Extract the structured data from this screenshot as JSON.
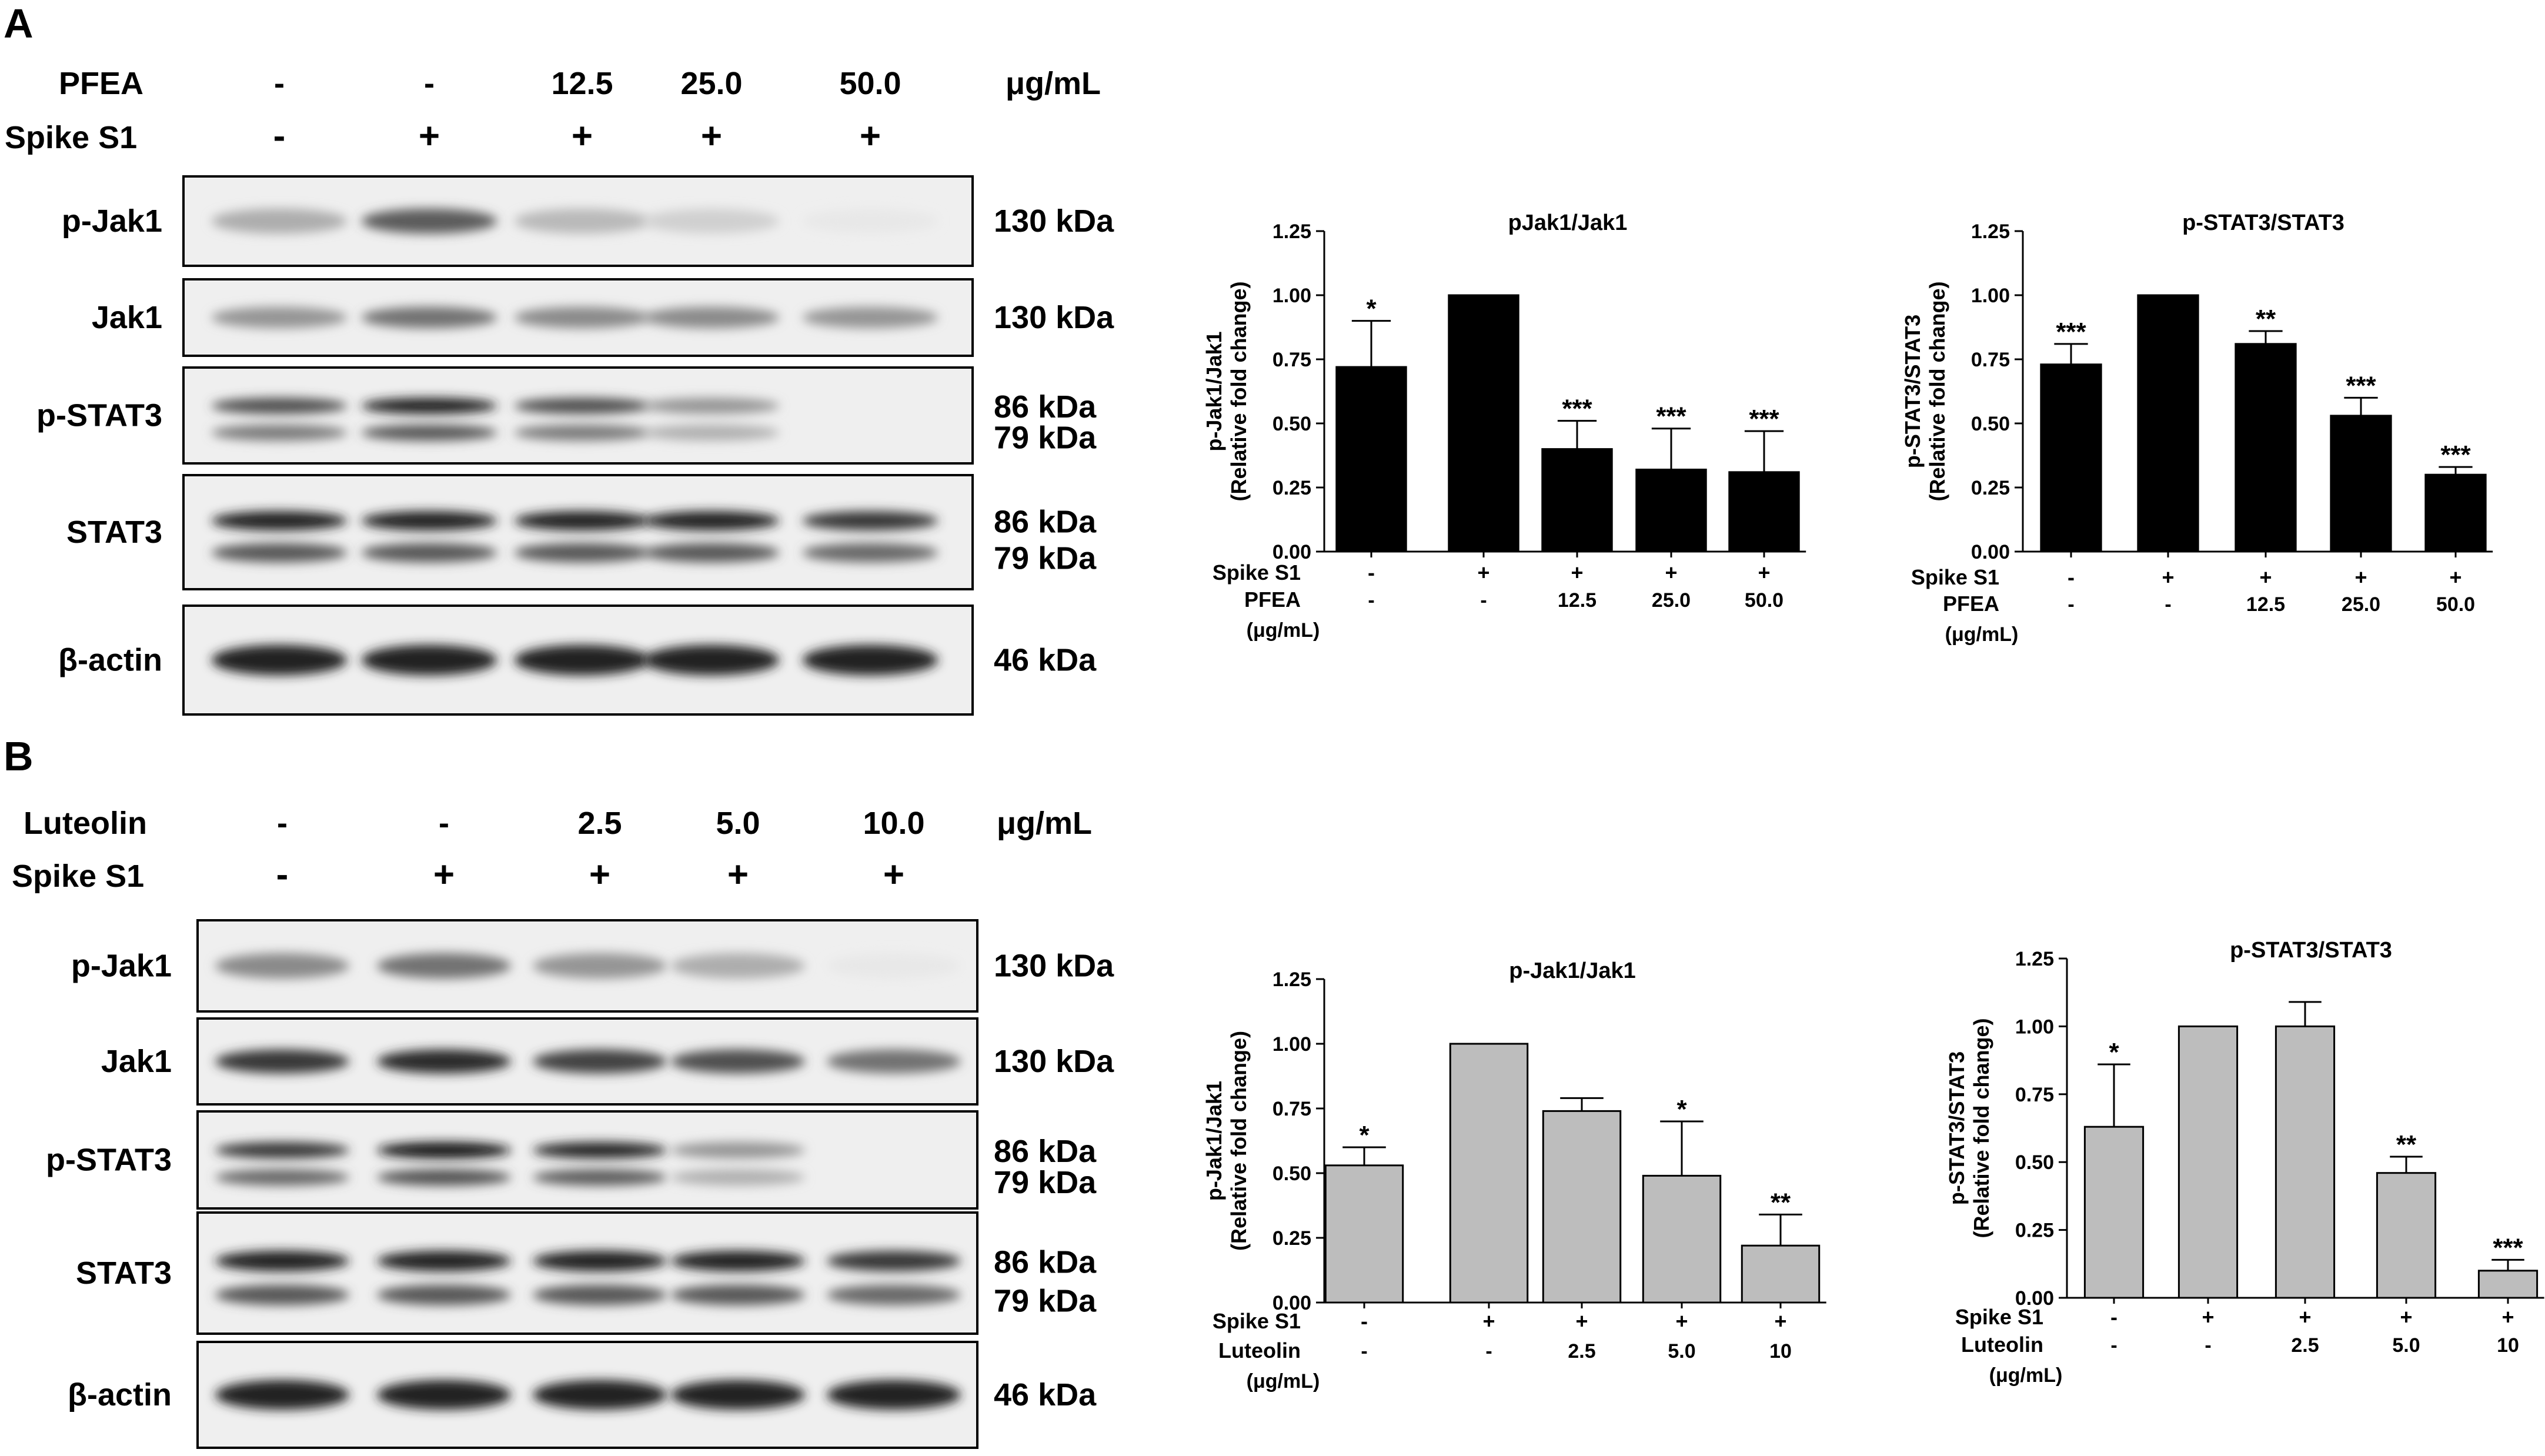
{
  "panels": [
    {
      "letter": "A",
      "blot": {
        "treatment_label": "PFEA",
        "treatment_values": [
          "-",
          "-",
          "12.5",
          "25.0",
          "50.0"
        ],
        "units": "μg/mL",
        "spike_label": "Spike S1",
        "spike_values": [
          "-",
          "+",
          "+",
          "+",
          "+"
        ],
        "rows": [
          {
            "name": "p-Jak1",
            "kda": [
              "130 kDa"
            ],
            "bands": 1,
            "intensity": [
              0.35,
              0.7,
              0.3,
              0.2,
              0.1
            ]
          },
          {
            "name": "Jak1",
            "kda": [
              "130 kDa"
            ],
            "bands": 1,
            "intensity": [
              0.45,
              0.6,
              0.5,
              0.5,
              0.45
            ]
          },
          {
            "name": "p-STAT3",
            "kda": [
              "86 kDa",
              "79 kDa"
            ],
            "bands": 2,
            "intensity": [
              0.75,
              0.95,
              0.75,
              0.45,
              0.0
            ]
          },
          {
            "name": "STAT3",
            "kda": [
              "86 kDa",
              "79 kDa"
            ],
            "bands": 2,
            "intensity": [
              0.95,
              0.95,
              0.95,
              0.95,
              0.85
            ]
          },
          {
            "name": "β-actin",
            "kda": [
              "46 kDa"
            ],
            "bands": 1,
            "intensity": [
              0.95,
              0.95,
              0.95,
              0.95,
              0.95
            ]
          }
        ]
      }
    },
    {
      "letter": "B",
      "blot": {
        "treatment_label": "Luteolin",
        "treatment_values": [
          "-",
          "-",
          "2.5",
          "5.0",
          "10.0"
        ],
        "units": "μg/mL",
        "spike_label": "Spike S1",
        "spike_values": [
          "-",
          "+",
          "+",
          "+",
          "+"
        ],
        "rows": [
          {
            "name": "p-Jak1",
            "kda": [
              "130 kDa"
            ],
            "bands": 1,
            "intensity": [
              0.5,
              0.6,
              0.45,
              0.35,
              0.1
            ]
          },
          {
            "name": "Jak1",
            "kda": [
              "130 kDa"
            ],
            "bands": 1,
            "intensity": [
              0.85,
              0.9,
              0.8,
              0.75,
              0.6
            ]
          },
          {
            "name": "p-STAT3",
            "kda": [
              "86 kDa",
              "79 kDa"
            ],
            "bands": 2,
            "intensity": [
              0.85,
              0.98,
              0.92,
              0.45,
              0.0
            ]
          },
          {
            "name": "STAT3",
            "kda": [
              "86 kDa",
              "79 kDa"
            ],
            "bands": 2,
            "intensity": [
              0.95,
              0.95,
              0.95,
              0.95,
              0.85
            ]
          },
          {
            "name": "β-actin",
            "kda": [
              "46 kDa"
            ],
            "bands": 1,
            "intensity": [
              0.95,
              0.95,
              0.95,
              0.95,
              0.95
            ]
          }
        ]
      }
    }
  ],
  "chart_data": [
    {
      "type": "bar",
      "title": "pJak1/Jak1",
      "ylabel": [
        "p-Jak1/Jak1",
        "(Relative fold change)"
      ],
      "ylim": [
        0,
        1.25
      ],
      "yticks": [
        "0.00",
        "0.25",
        "0.50",
        "0.75",
        "1.00",
        "1.25"
      ],
      "values": [
        0.72,
        1.0,
        0.4,
        0.32,
        0.31
      ],
      "errors": [
        0.18,
        0,
        0.11,
        0.16,
        0.16
      ],
      "significance": [
        "*",
        "",
        "***",
        "***",
        "***"
      ],
      "bar_color": "#000000",
      "row_labels": [
        "Spike S1",
        "PFEA",
        "(μg/mL)"
      ],
      "spike_values": [
        "-",
        "+",
        "+",
        "+",
        "+"
      ],
      "treatment_values": [
        "-",
        "-",
        "12.5",
        "25.0",
        "50.0"
      ]
    },
    {
      "type": "bar",
      "title": "p-STAT3/STAT3",
      "ylabel": [
        "p-STAT3/STAT3",
        "(Relative fold change)"
      ],
      "ylim": [
        0,
        1.25
      ],
      "yticks": [
        "0.00",
        "0.25",
        "0.50",
        "0.75",
        "1.00",
        "1.25"
      ],
      "values": [
        0.73,
        1.0,
        0.81,
        0.53,
        0.3
      ],
      "errors": [
        0.08,
        0,
        0.05,
        0.07,
        0.03
      ],
      "significance": [
        "***",
        "",
        "**",
        "***",
        "***"
      ],
      "bar_color": "#000000",
      "row_labels": [
        "Spike S1",
        "PFEA",
        "(μg/mL)"
      ],
      "spike_values": [
        "-",
        "+",
        "+",
        "+",
        "+"
      ],
      "treatment_values": [
        "-",
        "-",
        "12.5",
        "25.0",
        "50.0"
      ]
    },
    {
      "type": "bar",
      "title": "p-Jak1/Jak1",
      "ylabel": [
        "p-Jak1/Jak1",
        "(Relative fold change)"
      ],
      "ylim": [
        0,
        1.25
      ],
      "yticks": [
        "0.00",
        "0.25",
        "0.50",
        "0.75",
        "1.00",
        "1.25"
      ],
      "values": [
        0.53,
        1.0,
        0.74,
        0.49,
        0.22
      ],
      "errors": [
        0.07,
        0,
        0.05,
        0.21,
        0.12
      ],
      "significance": [
        "*",
        "",
        "",
        "*",
        "**"
      ],
      "bar_color": "#bdbdbd",
      "row_labels": [
        "Spike S1",
        "Luteolin",
        "(μg/mL)"
      ],
      "spike_values": [
        "-",
        "+",
        "+",
        "+",
        "+"
      ],
      "treatment_values": [
        "-",
        "-",
        "2.5",
        "5.0",
        "10"
      ]
    },
    {
      "type": "bar",
      "title": "p-STAT3/STAT3",
      "ylabel": [
        "p-STAT3/STAT3",
        "(Relative fold change)"
      ],
      "ylim": [
        0,
        1.25
      ],
      "yticks": [
        "0.00",
        "0.25",
        "0.50",
        "0.75",
        "1.00",
        "1.25"
      ],
      "values": [
        0.63,
        1.0,
        1.0,
        0.46,
        0.1
      ],
      "errors": [
        0.23,
        0,
        0.09,
        0.06,
        0.04
      ],
      "significance": [
        "*",
        "",
        "",
        "**",
        "***"
      ],
      "bar_color": "#bdbdbd",
      "row_labels": [
        "Spike S1",
        "Luteolin",
        "(μg/mL)"
      ],
      "spike_values": [
        "-",
        "+",
        "+",
        "+",
        "+"
      ],
      "treatment_values": [
        "-",
        "-",
        "2.5",
        "5.0",
        "10"
      ]
    }
  ]
}
